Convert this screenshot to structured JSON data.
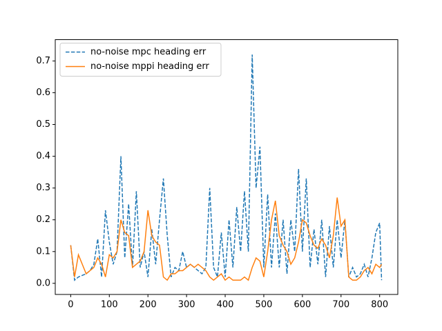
{
  "chart_data": {
    "type": "line",
    "x": [
      0,
      10,
      20,
      30,
      40,
      50,
      60,
      70,
      80,
      90,
      100,
      110,
      120,
      130,
      140,
      150,
      160,
      170,
      180,
      190,
      200,
      210,
      220,
      230,
      240,
      250,
      260,
      270,
      280,
      290,
      300,
      310,
      320,
      330,
      340,
      350,
      360,
      370,
      380,
      390,
      400,
      410,
      420,
      430,
      440,
      450,
      460,
      470,
      480,
      490,
      500,
      510,
      520,
      530,
      540,
      550,
      560,
      570,
      580,
      590,
      600,
      610,
      620,
      630,
      640,
      650,
      660,
      670,
      680,
      690,
      700,
      710,
      720,
      730,
      740,
      750,
      760,
      770,
      780,
      790,
      800,
      805
    ],
    "series": [
      {
        "name": "no-noise mpc heading err",
        "color": "#1f77b4",
        "style": "dashed",
        "values": [
          0.12,
          0.01,
          0.02,
          0.025,
          0.03,
          0.04,
          0.06,
          0.14,
          0.02,
          0.23,
          0.13,
          0.06,
          0.1,
          0.4,
          0.08,
          0.25,
          0.05,
          0.29,
          0.05,
          0.1,
          0.02,
          0.17,
          0.06,
          0.2,
          0.33,
          0.15,
          0.02,
          0.05,
          0.04,
          0.1,
          0.05,
          0.06,
          0.05,
          0.04,
          0.03,
          0.05,
          0.3,
          0.05,
          0.02,
          0.16,
          0.02,
          0.2,
          0.05,
          0.24,
          0.1,
          0.29,
          0.1,
          0.72,
          0.3,
          0.43,
          0.05,
          0.28,
          0.05,
          0.22,
          0.05,
          0.2,
          0.03,
          0.2,
          0.1,
          0.36,
          0.1,
          0.33,
          0.05,
          0.17,
          0.06,
          0.2,
          0.02,
          0.18,
          0.05,
          0.2,
          0.08,
          0.2,
          0.02,
          0.05,
          0.02,
          0.03,
          0.06,
          0.02,
          0.08,
          0.16,
          0.19,
          0.01
        ]
      },
      {
        "name": "no-noise mppi heading err",
        "color": "#ff7f0e",
        "style": "solid",
        "values": [
          0.12,
          0.02,
          0.09,
          0.06,
          0.03,
          0.04,
          0.05,
          0.08,
          0.06,
          0.02,
          0.09,
          0.08,
          0.1,
          0.2,
          0.16,
          0.15,
          0.05,
          0.06,
          0.07,
          0.1,
          0.23,
          0.15,
          0.13,
          0.12,
          0.02,
          0.01,
          0.03,
          0.03,
          0.04,
          0.04,
          0.05,
          0.06,
          0.05,
          0.06,
          0.05,
          0.04,
          0.02,
          0.01,
          0.02,
          0.03,
          0.01,
          0.02,
          0.01,
          0.01,
          0.01,
          0.02,
          0.01,
          0.05,
          0.08,
          0.07,
          0.02,
          0.1,
          0.2,
          0.26,
          0.15,
          0.12,
          0.1,
          0.06,
          0.08,
          0.13,
          0.2,
          0.19,
          0.15,
          0.12,
          0.11,
          0.14,
          0.12,
          0.08,
          0.15,
          0.27,
          0.18,
          0.2,
          0.02,
          0.01,
          0.01,
          0.02,
          0.04,
          0.05,
          0.03,
          0.06,
          0.05,
          0.06
        ]
      }
    ],
    "xlim": [
      -40,
      847
    ],
    "ylim": [
      -0.035,
      0.767
    ],
    "xticks": [
      0,
      100,
      200,
      300,
      400,
      500,
      600,
      700,
      800
    ],
    "yticks": [
      {
        "value": 0,
        "label": "0.0"
      },
      0.1,
      0.2,
      0.3,
      0.4,
      0.5,
      0.6,
      0.7
    ],
    "legend": "upper left"
  }
}
